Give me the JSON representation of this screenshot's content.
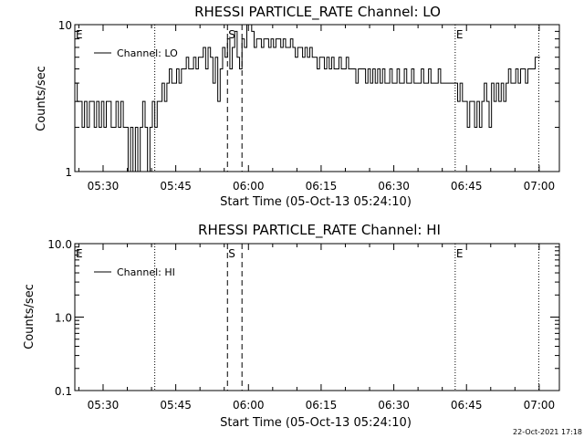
{
  "footer": {
    "date_stamp": "22-Oct-2021 17:18"
  },
  "chart_data": [
    {
      "type": "line",
      "title": "RHESSI PARTICLE_RATE Channel: LO",
      "xlabel": "Start Time (05-Oct-13 05:24:10)",
      "ylabel": "Counts/sec",
      "y_scale": "log",
      "ylim": [
        1,
        10
      ],
      "xlim": [
        "05:24:10",
        "07:04:10"
      ],
      "x_ticks": [
        "05:30",
        "05:45",
        "06:00",
        "06:15",
        "06:30",
        "06:45",
        "07:00"
      ],
      "y_ticks": [
        "1",
        "10"
      ],
      "legend": {
        "position": "top-left",
        "entries": [
          "Channel: LO"
        ]
      },
      "line_color": "#000000",
      "markers": [
        {
          "label": "E",
          "time": "05:24:10",
          "style": "none"
        },
        {
          "label": "",
          "time": "05:40:40",
          "style": "dotted"
        },
        {
          "label": "S",
          "time": "05:55:40",
          "style": "dashed"
        },
        {
          "label": "",
          "time": "05:58:40",
          "style": "dashed"
        },
        {
          "label": "E",
          "time": "06:42:40",
          "style": "dotted"
        },
        {
          "label": "",
          "time": "06:59:55",
          "style": "dotted"
        }
      ],
      "series": [
        {
          "name": "Channel: LO",
          "points": [
            [
              "05:24:10",
              4
            ],
            [
              "05:24:40",
              3
            ],
            [
              "05:25:10",
              3
            ],
            [
              "05:25:40",
              2
            ],
            [
              "05:26:10",
              3
            ],
            [
              "05:26:40",
              2
            ],
            [
              "05:27:10",
              3
            ],
            [
              "05:27:40",
              3
            ],
            [
              "05:28:10",
              2
            ],
            [
              "05:28:40",
              3
            ],
            [
              "05:29:10",
              2
            ],
            [
              "05:29:40",
              3
            ],
            [
              "05:30:10",
              2
            ],
            [
              "05:30:40",
              3
            ],
            [
              "05:31:10",
              3
            ],
            [
              "05:31:40",
              2
            ],
            [
              "05:32:10",
              2
            ],
            [
              "05:32:40",
              3
            ],
            [
              "05:33:10",
              2
            ],
            [
              "05:33:40",
              3
            ],
            [
              "05:34:10",
              2
            ],
            [
              "05:34:40",
              2
            ],
            [
              "05:35:10",
              1
            ],
            [
              "05:35:40",
              2
            ],
            [
              "05:36:10",
              1
            ],
            [
              "05:36:40",
              2
            ],
            [
              "05:37:10",
              1
            ],
            [
              "05:37:40",
              2
            ],
            [
              "05:38:10",
              3
            ],
            [
              "05:38:40",
              2
            ],
            [
              "05:39:10",
              1
            ],
            [
              "05:39:40",
              2
            ],
            [
              "05:40:10",
              3
            ],
            [
              "05:40:40",
              2
            ],
            [
              "05:41:10",
              3
            ],
            [
              "05:41:40",
              3
            ],
            [
              "05:42:10",
              4
            ],
            [
              "05:42:40",
              3
            ],
            [
              "05:43:10",
              4
            ],
            [
              "05:43:40",
              5
            ],
            [
              "05:44:10",
              4
            ],
            [
              "05:44:40",
              4
            ],
            [
              "05:45:10",
              5
            ],
            [
              "05:45:40",
              4
            ],
            [
              "05:46:10",
              5
            ],
            [
              "05:46:40",
              5
            ],
            [
              "05:47:10",
              6
            ],
            [
              "05:47:40",
              5
            ],
            [
              "05:48:10",
              5
            ],
            [
              "05:48:40",
              6
            ],
            [
              "05:49:10",
              5
            ],
            [
              "05:49:40",
              6
            ],
            [
              "05:50:10",
              6
            ],
            [
              "05:50:40",
              7
            ],
            [
              "05:51:10",
              5
            ],
            [
              "05:51:40",
              7
            ],
            [
              "05:52:10",
              6
            ],
            [
              "05:52:40",
              4
            ],
            [
              "05:53:10",
              6
            ],
            [
              "05:53:40",
              3
            ],
            [
              "05:54:10",
              5
            ],
            [
              "05:54:40",
              7
            ],
            [
              "05:55:10",
              6
            ],
            [
              "05:55:40",
              8
            ],
            [
              "05:56:10",
              5
            ],
            [
              "05:56:40",
              7
            ],
            [
              "05:57:10",
              9
            ],
            [
              "05:57:40",
              6
            ],
            [
              "05:58:10",
              5
            ],
            [
              "05:58:40",
              8
            ],
            [
              "05:59:10",
              7
            ],
            [
              "05:59:40",
              10
            ],
            [
              "06:00:10",
              10
            ],
            [
              "06:00:40",
              9
            ],
            [
              "06:01:10",
              7
            ],
            [
              "06:01:40",
              8
            ],
            [
              "06:02:10",
              8
            ],
            [
              "06:02:40",
              7
            ],
            [
              "06:03:10",
              8
            ],
            [
              "06:03:40",
              8
            ],
            [
              "06:04:10",
              7
            ],
            [
              "06:04:40",
              8
            ],
            [
              "06:05:10",
              7
            ],
            [
              "06:05:40",
              8
            ],
            [
              "06:06:10",
              8
            ],
            [
              "06:06:40",
              7
            ],
            [
              "06:07:10",
              8
            ],
            [
              "06:07:40",
              7
            ],
            [
              "06:08:10",
              7
            ],
            [
              "06:08:40",
              8
            ],
            [
              "06:09:10",
              7
            ],
            [
              "06:09:40",
              6
            ],
            [
              "06:10:10",
              7
            ],
            [
              "06:10:40",
              7
            ],
            [
              "06:11:10",
              6
            ],
            [
              "06:11:40",
              7
            ],
            [
              "06:12:10",
              6
            ],
            [
              "06:12:40",
              7
            ],
            [
              "06:13:10",
              6
            ],
            [
              "06:13:40",
              6
            ],
            [
              "06:14:10",
              5
            ],
            [
              "06:14:40",
              6
            ],
            [
              "06:15:10",
              6
            ],
            [
              "06:15:40",
              5
            ],
            [
              "06:16:10",
              6
            ],
            [
              "06:16:40",
              5
            ],
            [
              "06:17:10",
              6
            ],
            [
              "06:17:40",
              5
            ],
            [
              "06:18:10",
              5
            ],
            [
              "06:18:40",
              6
            ],
            [
              "06:19:10",
              5
            ],
            [
              "06:19:40",
              5
            ],
            [
              "06:20:10",
              6
            ],
            [
              "06:20:40",
              5
            ],
            [
              "06:21:10",
              5
            ],
            [
              "06:21:40",
              5
            ],
            [
              "06:22:10",
              4
            ],
            [
              "06:22:40",
              5
            ],
            [
              "06:23:10",
              5
            ],
            [
              "06:23:40",
              5
            ],
            [
              "06:24:10",
              4
            ],
            [
              "06:24:40",
              5
            ],
            [
              "06:25:10",
              4
            ],
            [
              "06:25:40",
              5
            ],
            [
              "06:26:10",
              4
            ],
            [
              "06:26:40",
              5
            ],
            [
              "06:27:10",
              4
            ],
            [
              "06:27:40",
              5
            ],
            [
              "06:28:10",
              4
            ],
            [
              "06:28:40",
              4
            ],
            [
              "06:29:10",
              5
            ],
            [
              "06:29:40",
              4
            ],
            [
              "06:30:10",
              4
            ],
            [
              "06:30:40",
              5
            ],
            [
              "06:31:10",
              4
            ],
            [
              "06:31:40",
              4
            ],
            [
              "06:32:10",
              5
            ],
            [
              "06:32:40",
              4
            ],
            [
              "06:33:10",
              4
            ],
            [
              "06:33:40",
              5
            ],
            [
              "06:34:10",
              4
            ],
            [
              "06:34:40",
              4
            ],
            [
              "06:35:10",
              4
            ],
            [
              "06:35:40",
              5
            ],
            [
              "06:36:10",
              4
            ],
            [
              "06:36:40",
              4
            ],
            [
              "06:37:10",
              5
            ],
            [
              "06:37:40",
              4
            ],
            [
              "06:38:10",
              4
            ],
            [
              "06:38:40",
              4
            ],
            [
              "06:39:10",
              5
            ],
            [
              "06:39:40",
              4
            ],
            [
              "06:40:10",
              4
            ],
            [
              "06:40:40",
              4
            ],
            [
              "06:41:10",
              4
            ],
            [
              "06:41:40",
              4
            ],
            [
              "06:42:10",
              4
            ],
            [
              "06:42:40",
              4
            ],
            [
              "06:43:10",
              3
            ],
            [
              "06:43:40",
              4
            ],
            [
              "06:44:10",
              3
            ],
            [
              "06:44:40",
              3
            ],
            [
              "06:45:10",
              2
            ],
            [
              "06:45:40",
              3
            ],
            [
              "06:46:10",
              3
            ],
            [
              "06:46:40",
              2
            ],
            [
              "06:47:10",
              3
            ],
            [
              "06:47:40",
              2
            ],
            [
              "06:48:10",
              3
            ],
            [
              "06:48:40",
              4
            ],
            [
              "06:49:10",
              3
            ],
            [
              "06:49:40",
              2
            ],
            [
              "06:50:10",
              4
            ],
            [
              "06:50:40",
              3
            ],
            [
              "06:51:10",
              4
            ],
            [
              "06:51:40",
              3
            ],
            [
              "06:52:10",
              4
            ],
            [
              "06:52:40",
              3
            ],
            [
              "06:53:10",
              4
            ],
            [
              "06:53:40",
              5
            ],
            [
              "06:54:10",
              4
            ],
            [
              "06:54:40",
              4
            ],
            [
              "06:55:10",
              5
            ],
            [
              "06:55:40",
              4
            ],
            [
              "06:56:10",
              5
            ],
            [
              "06:56:40",
              5
            ],
            [
              "06:57:10",
              4
            ],
            [
              "06:57:40",
              5
            ],
            [
              "06:58:10",
              5
            ],
            [
              "06:58:40",
              5
            ],
            [
              "06:59:10",
              6
            ],
            [
              "06:59:40",
              6
            ]
          ]
        }
      ]
    },
    {
      "type": "line",
      "title": "RHESSI PARTICLE_RATE Channel: HI",
      "xlabel": "Start Time (05-Oct-13 05:24:10)",
      "ylabel": "Counts/sec",
      "y_scale": "log",
      "ylim": [
        0.1,
        10
      ],
      "xlim": [
        "05:24:10",
        "07:04:10"
      ],
      "x_ticks": [
        "05:30",
        "05:45",
        "06:00",
        "06:15",
        "06:30",
        "06:45",
        "07:00"
      ],
      "y_ticks": [
        "0.1",
        "1.0",
        "10.0"
      ],
      "legend": {
        "position": "top-left",
        "entries": [
          "Channel: HI"
        ]
      },
      "line_color": "#000000",
      "markers": [
        {
          "label": "E",
          "time": "05:24:10",
          "style": "none"
        },
        {
          "label": "",
          "time": "05:40:40",
          "style": "dotted"
        },
        {
          "label": "S",
          "time": "05:55:40",
          "style": "dashed"
        },
        {
          "label": "",
          "time": "05:58:40",
          "style": "dashed"
        },
        {
          "label": "E",
          "time": "06:42:40",
          "style": "dotted"
        },
        {
          "label": "",
          "time": "06:59:55",
          "style": "dotted"
        }
      ],
      "series": [
        {
          "name": "Channel: HI",
          "points": []
        }
      ]
    }
  ]
}
